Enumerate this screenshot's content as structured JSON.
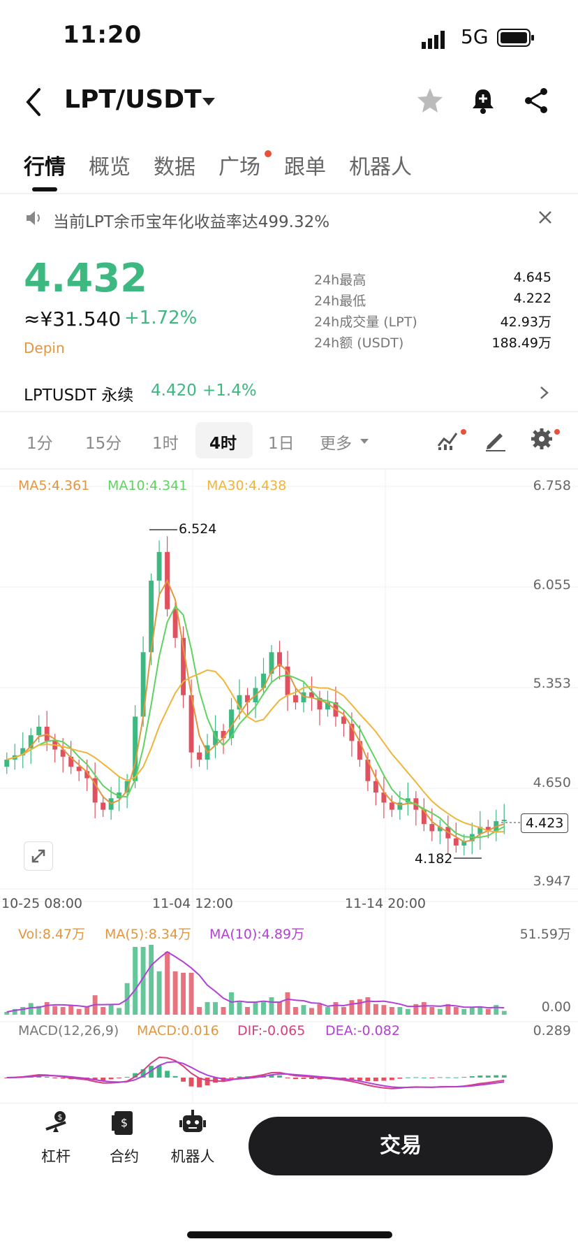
{
  "status_bar": {
    "time": "11:20",
    "network": "5G"
  },
  "header": {
    "pair": "LPT/USDT"
  },
  "tabs": [
    {
      "label": "行情",
      "active": true
    },
    {
      "label": "概览"
    },
    {
      "label": "数据"
    },
    {
      "label": "广场",
      "dot": true
    },
    {
      "label": "跟单"
    },
    {
      "label": "机器人"
    }
  ],
  "notice": {
    "text": "当前LPT余币宝年化收益率达499.32%"
  },
  "price": {
    "last": "4.432",
    "cny": "≈¥31.540",
    "change": "+1.72%",
    "tag": "Depin"
  },
  "stats": [
    {
      "label": "24h最高",
      "value": "4.645"
    },
    {
      "label": "24h最低",
      "value": "4.222"
    },
    {
      "label": "24h成交量 (LPT)",
      "value": "42.93万"
    },
    {
      "label": "24h额 (USDT)",
      "value": "188.49万"
    }
  ],
  "perpetual": {
    "name": "LPTUSDT 永续",
    "price": "4.420",
    "change": "+1.4%"
  },
  "intervals": [
    {
      "label": "1分"
    },
    {
      "label": "15分"
    },
    {
      "label": "1时"
    },
    {
      "label": "4时",
      "active": true
    },
    {
      "label": "1日"
    },
    {
      "label": "更多"
    }
  ],
  "colors": {
    "up": "#3db880",
    "down": "#e0505e",
    "ma5": "#e2963f",
    "ma10": "#5fd35f",
    "ma30": "#f0b43a",
    "ma_vol10": "#b33fd6",
    "accent_dot": "#e8503a"
  },
  "chart_data": {
    "type": "candlestick",
    "ma": {
      "ma5": "MA5:4.361",
      "ma10": "MA10:4.341",
      "ma30": "MA30:4.438"
    },
    "y_ticks": [
      "6.758",
      "6.055",
      "5.353",
      "4.650",
      "3.947"
    ],
    "ylim": [
      3.947,
      6.758
    ],
    "x_ticks": [
      "10-25 08:00",
      "11-04 12:00",
      "11-14 20:00"
    ],
    "high_label": "6.524",
    "low_label": "4.182",
    "current": "4.423",
    "closes": [
      4.85,
      4.88,
      4.93,
      5.02,
      5.08,
      4.98,
      4.92,
      4.87,
      4.8,
      4.77,
      4.72,
      4.55,
      4.5,
      4.58,
      4.62,
      4.7,
      5.15,
      5.6,
      6.1,
      6.3,
      5.9,
      5.7,
      5.3,
      4.9,
      4.85,
      4.95,
      5.05,
      5.0,
      5.2,
      5.3,
      5.25,
      5.35,
      5.45,
      5.6,
      5.5,
      5.3,
      5.25,
      5.32,
      5.28,
      5.2,
      5.25,
      5.15,
      5.1,
      4.98,
      4.85,
      4.7,
      4.62,
      4.55,
      4.5,
      4.55,
      4.58,
      4.5,
      4.4,
      4.35,
      4.38,
      4.3,
      4.25,
      4.28,
      4.33,
      4.38,
      4.35,
      4.42,
      4.43
    ],
    "volume": {
      "labels": [
        "Vol:8.47万",
        "MA(5):8.34万",
        "MA(10):4.89万"
      ],
      "ymax": "51.59万",
      "ymin": "0.00"
    },
    "macd": {
      "labels": [
        "MACD(12,26,9)",
        "MACD:0.016",
        "DIF:-0.065",
        "DEA:-0.082"
      ],
      "ymax": "0.289"
    }
  },
  "bottom_nav": [
    {
      "label": "杠杆",
      "icon": "leverage-icon"
    },
    {
      "label": "合约",
      "icon": "contract-icon"
    },
    {
      "label": "机器人",
      "icon": "robot-icon"
    }
  ],
  "trade_button": "交易"
}
